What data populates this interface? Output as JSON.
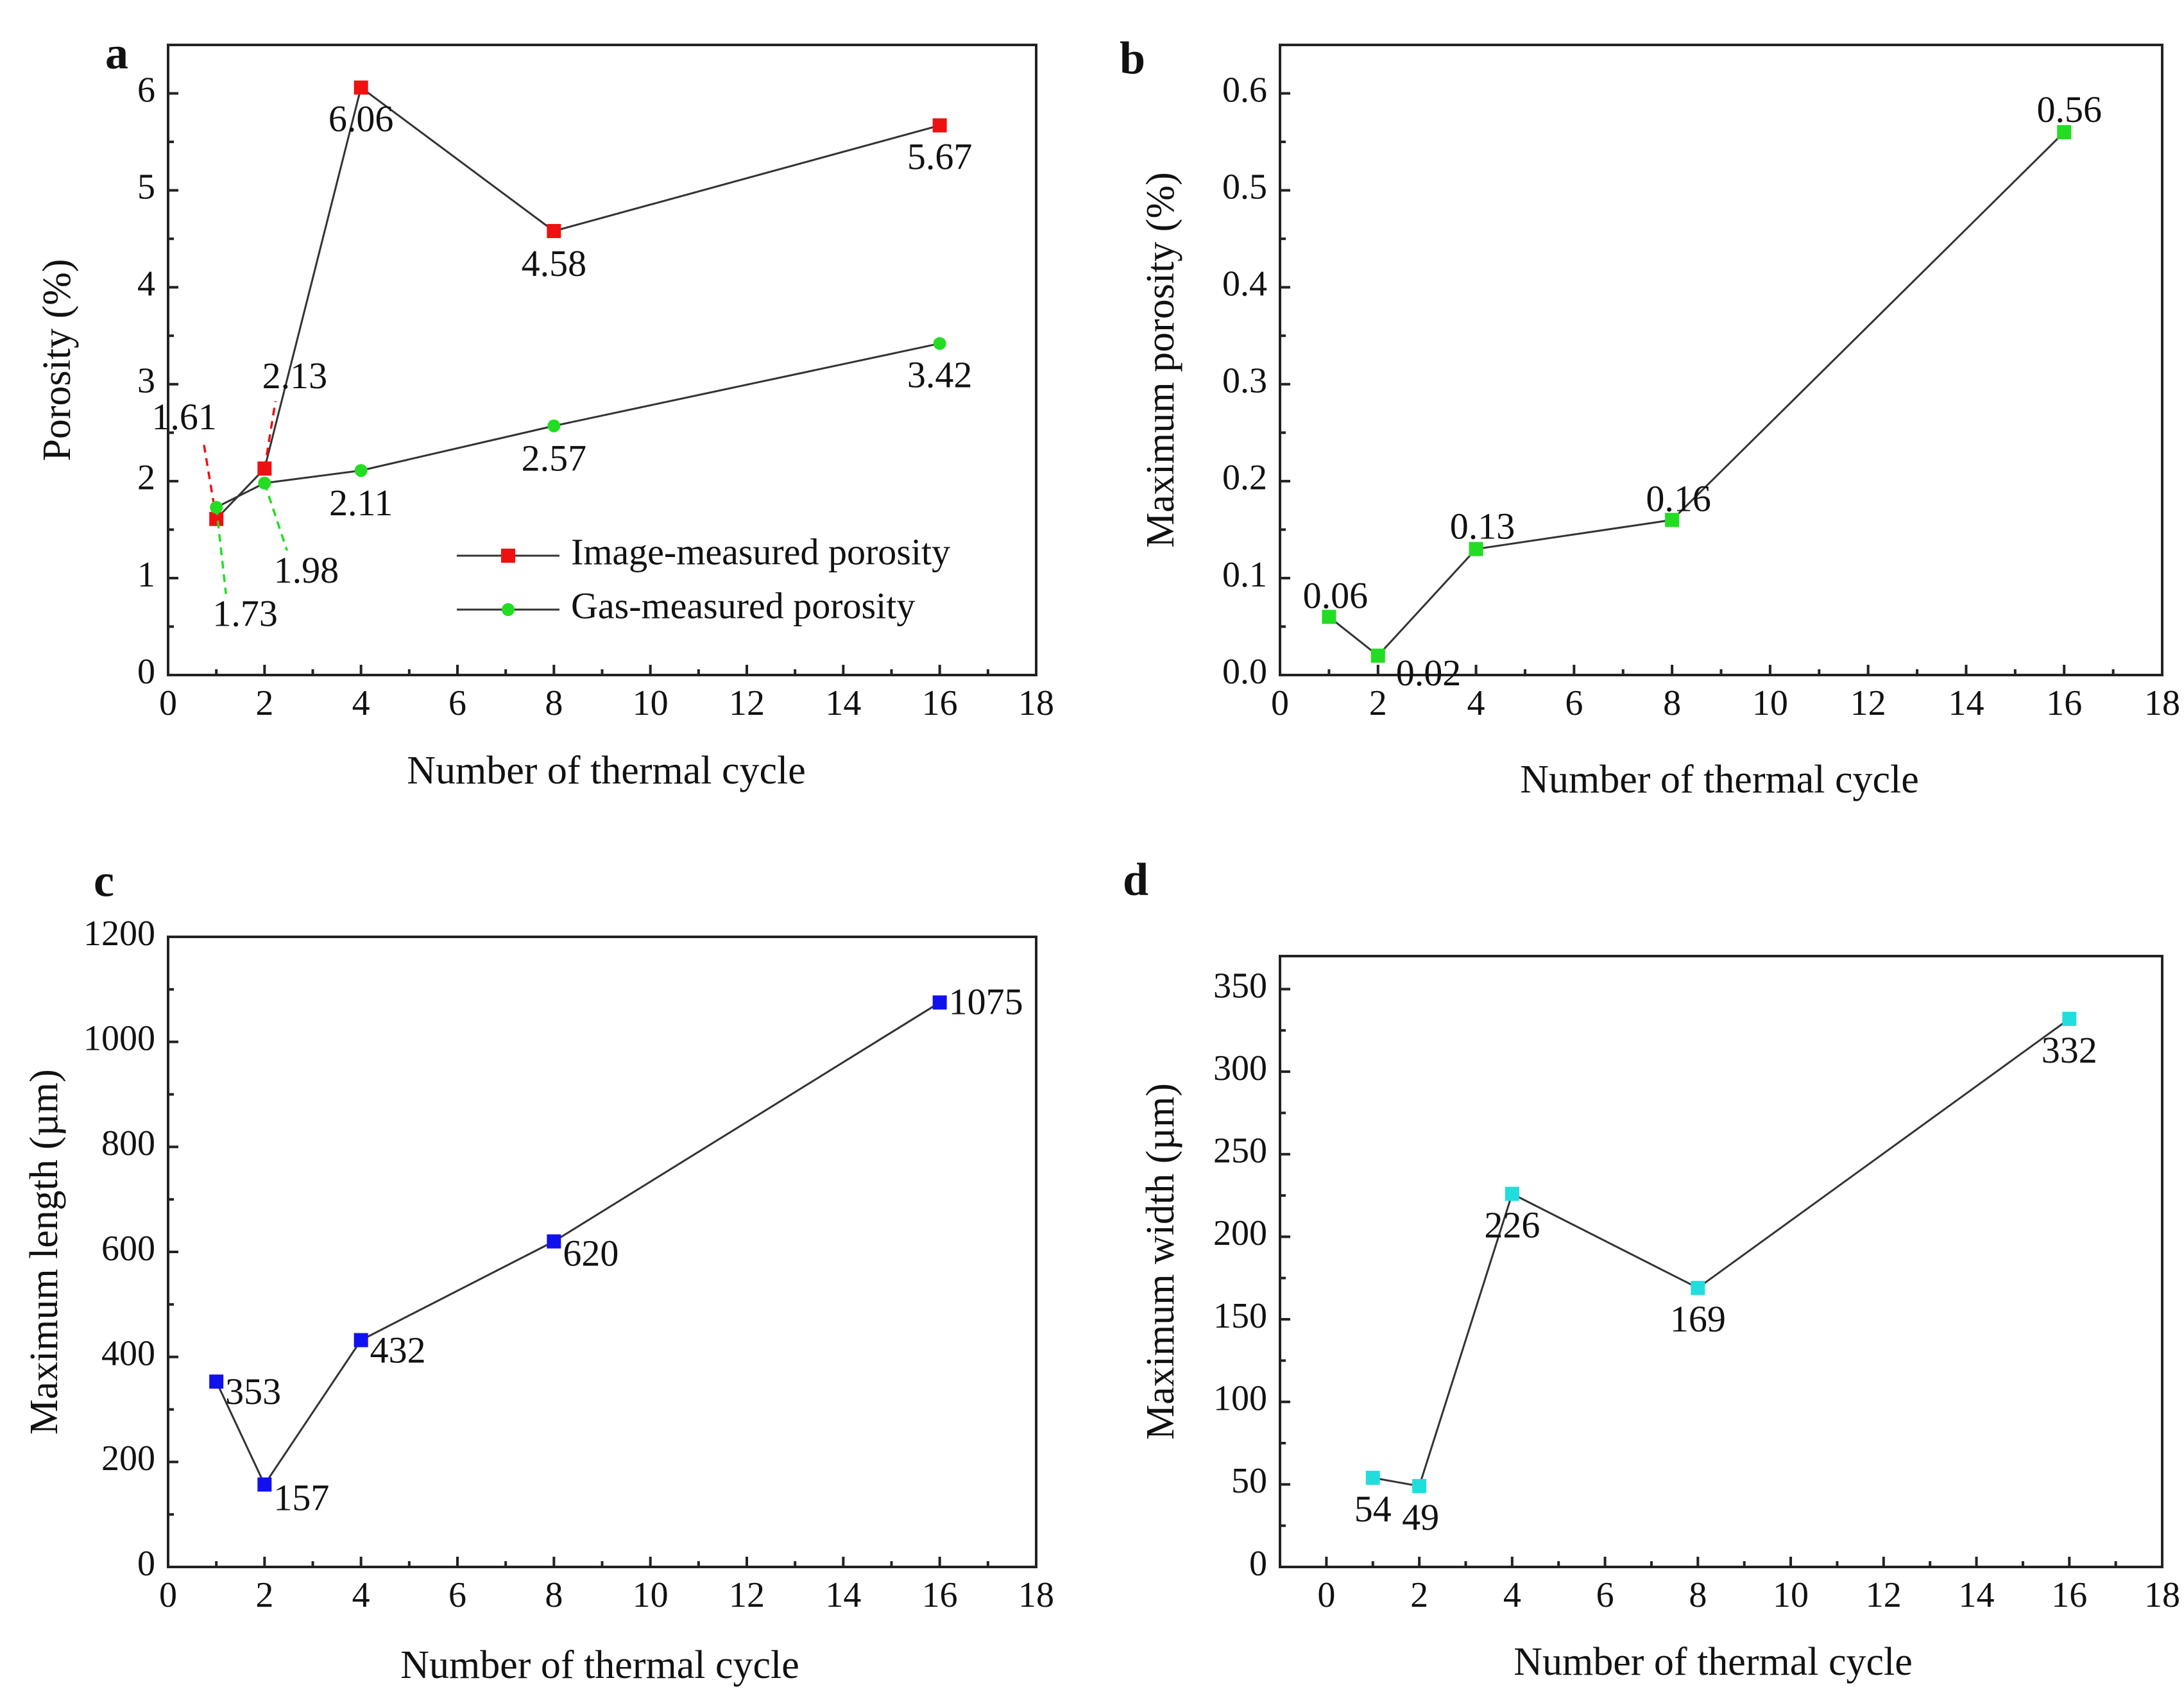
{
  "chart_data": [
    {
      "panel": "a",
      "type": "line",
      "title": "",
      "xlabel": "Number of thermal cycle",
      "ylabel": "Porosity (%)",
      "xlim": [
        0,
        18
      ],
      "ylim": [
        0,
        6.5
      ],
      "xticks": [
        0,
        2,
        4,
        6,
        8,
        10,
        12,
        14,
        16,
        18
      ],
      "yticks": [
        0,
        1,
        2,
        3,
        4,
        5,
        6
      ],
      "x": [
        1,
        2,
        4,
        8,
        16
      ],
      "series": [
        {
          "name": "Image-measured porosity",
          "color": "#ee1111",
          "values": [
            1.61,
            2.13,
            6.06,
            4.58,
            5.67
          ],
          "labels": [
            "1.61",
            "2.13",
            "6.06",
            "4.58",
            "5.67"
          ]
        },
        {
          "name": "Gas-measured porosity",
          "color": "#22dd22",
          "values": [
            1.73,
            1.98,
            2.11,
            2.57,
            3.42
          ],
          "labels": [
            "1.73",
            "1.98",
            "2.11",
            "2.57",
            "3.42"
          ]
        }
      ],
      "legend": "bottom-right"
    },
    {
      "panel": "b",
      "type": "line",
      "title": "",
      "xlabel": "Number of thermal cycle",
      "ylabel": "Maximum porosity (%)",
      "xlim": [
        0,
        18
      ],
      "ylim": [
        0,
        0.65
      ],
      "xticks": [
        0,
        2,
        4,
        6,
        8,
        10,
        12,
        14,
        16,
        18
      ],
      "yticks": [
        "0.0",
        "0.1",
        "0.2",
        "0.3",
        "0.4",
        "0.5",
        "0.6"
      ],
      "x": [
        1,
        2,
        4,
        8,
        16
      ],
      "series": [
        {
          "name": "Maximum porosity",
          "color": "#22dd22",
          "values": [
            0.06,
            0.02,
            0.13,
            0.16,
            0.56
          ],
          "labels": [
            "0.06",
            "0.02",
            "0.13",
            "0.16",
            "0.56"
          ]
        }
      ]
    },
    {
      "panel": "c",
      "type": "line",
      "title": "",
      "xlabel": "Number of thermal cycle",
      "ylabel": "Maximum length (µm)",
      "xlim": [
        0,
        18
      ],
      "ylim": [
        0,
        1200
      ],
      "xticks": [
        0,
        2,
        4,
        6,
        8,
        10,
        12,
        14,
        16,
        18
      ],
      "yticks": [
        0,
        200,
        400,
        600,
        800,
        1000,
        1200
      ],
      "x": [
        1,
        2,
        4,
        8,
        16
      ],
      "series": [
        {
          "name": "Maximum length",
          "color": "#1111ee",
          "values": [
            353,
            157,
            432,
            620,
            1075
          ],
          "labels": [
            "353",
            "157",
            "432",
            "620",
            "1075"
          ]
        }
      ]
    },
    {
      "panel": "d",
      "type": "line",
      "title": "",
      "xlabel": "Number of thermal cycle",
      "ylabel": "Maximum width (µm)",
      "xlim": [
        -1,
        18
      ],
      "ylim": [
        0,
        370
      ],
      "xticks": [
        0,
        2,
        4,
        6,
        8,
        10,
        12,
        14,
        16,
        18
      ],
      "yticks": [
        0,
        50,
        100,
        150,
        200,
        250,
        300,
        350
      ],
      "x": [
        1,
        2,
        4,
        8,
        16
      ],
      "series": [
        {
          "name": "Maximum width",
          "color": "#22dddd",
          "values": [
            54,
            49,
            226,
            169,
            332
          ],
          "labels": [
            "54",
            "49",
            "226",
            "169",
            "332"
          ]
        }
      ]
    }
  ]
}
